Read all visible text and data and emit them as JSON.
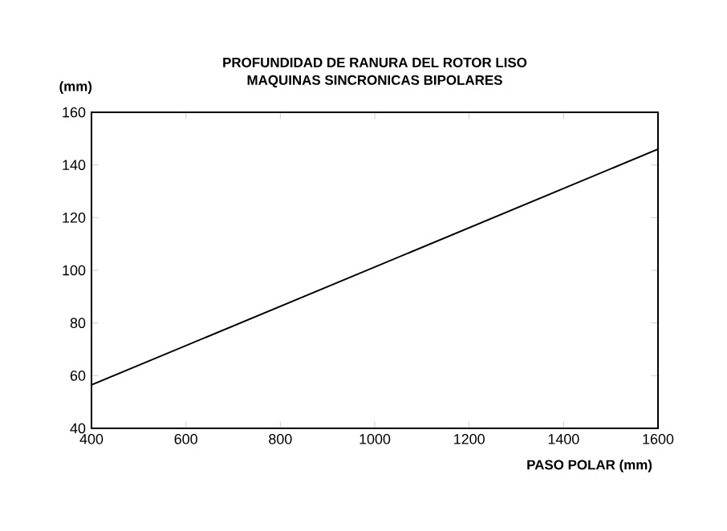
{
  "chart_data": {
    "type": "line",
    "title": "PROFUNDIDAD DE RANURA DEL ROTOR LISO\nMAQUINAS SINCRONICAS BIPOLARES",
    "xlabel": "PASO POLAR (mm)",
    "ylabel": "(mm)",
    "x": [
      400,
      1600
    ],
    "values": [
      56.5,
      146
    ],
    "color": "#000000",
    "marker": "none",
    "line_style": "solid",
    "xlim": [
      400,
      1600
    ],
    "ylim": [
      40,
      160
    ],
    "xticks": [
      400,
      600,
      800,
      1000,
      1200,
      1400,
      1600
    ],
    "yticks": [
      40,
      60,
      80,
      100,
      120,
      140,
      160
    ]
  }
}
